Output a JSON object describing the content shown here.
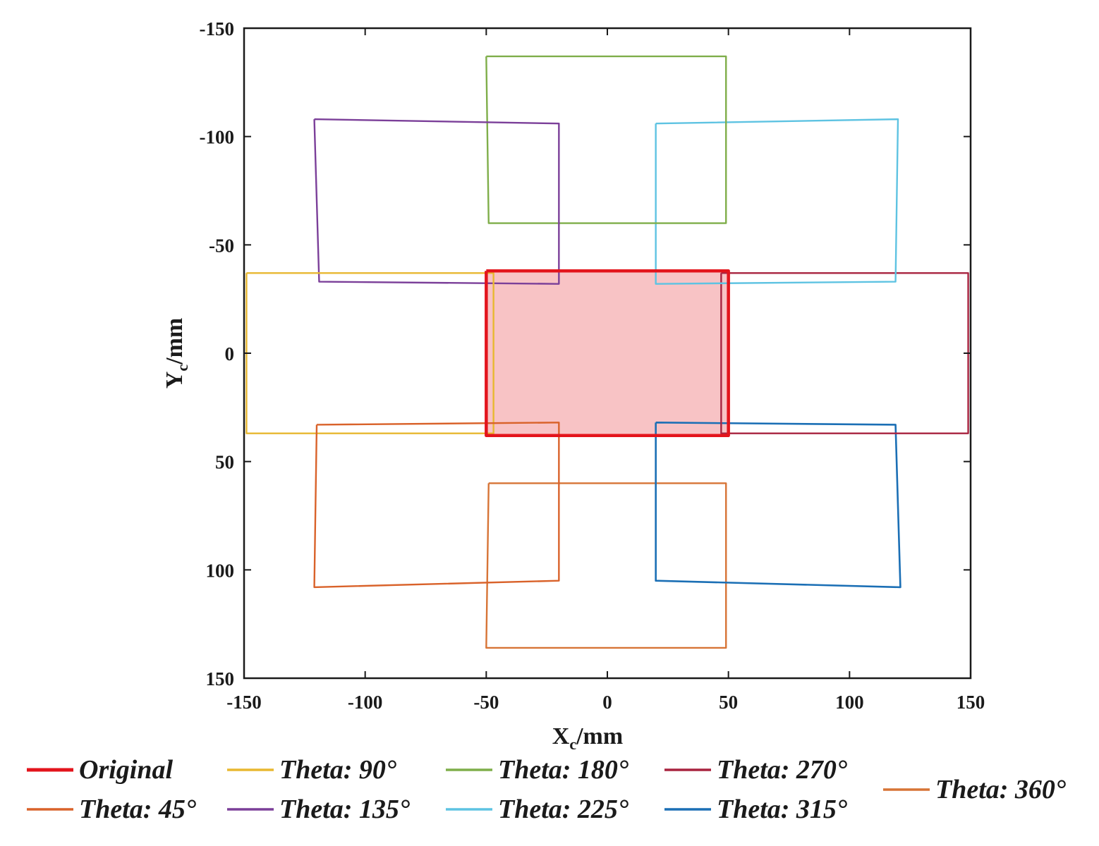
{
  "chart_data": {
    "type": "line",
    "title": "",
    "xlabel": {
      "main": "X",
      "sub": "c",
      "unit": "/mm"
    },
    "ylabel": {
      "main": "Y",
      "sub": "c",
      "unit": "/mm"
    },
    "xlim": [
      -150,
      150
    ],
    "ylim": [
      -150,
      150
    ],
    "y_inverted": true,
    "grid": false,
    "xticks": [
      -150,
      -100,
      -50,
      0,
      50,
      100,
      150
    ],
    "yticks": [
      -150,
      -100,
      -50,
      0,
      50,
      100,
      150
    ],
    "legend_position": "bottom",
    "series": [
      {
        "name": "Original",
        "color": "#e3141c",
        "width": 4.5,
        "fill": "#f8c3c5",
        "points": [
          [
            -50,
            -38
          ],
          [
            50,
            -38
          ],
          [
            50,
            38
          ],
          [
            -50,
            38
          ],
          [
            -50,
            -38
          ]
        ]
      },
      {
        "name": "Theta: 45°",
        "color": "#d9622a",
        "width": 2.4,
        "points": [
          [
            -120,
            33
          ],
          [
            -20,
            32
          ],
          [
            -20,
            105
          ],
          [
            -121,
            108
          ],
          [
            -120,
            33
          ]
        ]
      },
      {
        "name": "Theta: 90°",
        "color": "#e8b830",
        "width": 2.4,
        "points": [
          [
            -149,
            -37
          ],
          [
            -47,
            -37
          ],
          [
            -47,
            37
          ],
          [
            -149,
            37
          ],
          [
            -149,
            -37
          ]
        ]
      },
      {
        "name": "Theta: 135°",
        "color": "#7b3f99",
        "width": 2.4,
        "points": [
          [
            -121,
            -108
          ],
          [
            -20,
            -106
          ],
          [
            -20,
            -32
          ],
          [
            -119,
            -33
          ],
          [
            -121,
            -108
          ]
        ]
      },
      {
        "name": "Theta: 180°",
        "color": "#7fae4a",
        "width": 2.4,
        "points": [
          [
            -50,
            -137
          ],
          [
            49,
            -137
          ],
          [
            49,
            -60
          ],
          [
            -49,
            -60
          ],
          [
            -50,
            -137
          ]
        ]
      },
      {
        "name": "Theta: 225°",
        "color": "#5ec3e2",
        "width": 2.4,
        "points": [
          [
            20,
            -106
          ],
          [
            120,
            -108
          ],
          [
            119,
            -33
          ],
          [
            20,
            -32
          ],
          [
            20,
            -106
          ]
        ]
      },
      {
        "name": "Theta: 270°",
        "color": "#a8233f",
        "width": 2.4,
        "points": [
          [
            47,
            -37
          ],
          [
            149,
            -37
          ],
          [
            149,
            37
          ],
          [
            47,
            37
          ],
          [
            47,
            -37
          ]
        ]
      },
      {
        "name": "Theta: 315°",
        "color": "#1b6fb5",
        "width": 2.6,
        "points": [
          [
            20,
            32
          ],
          [
            119,
            33
          ],
          [
            121,
            108
          ],
          [
            20,
            105
          ],
          [
            20,
            32
          ]
        ]
      },
      {
        "name": "Theta: 360°",
        "color": "#d77436",
        "width": 2.4,
        "points": [
          [
            -49,
            60
          ],
          [
            49,
            60
          ],
          [
            49,
            136
          ],
          [
            -50,
            136
          ],
          [
            -49,
            60
          ]
        ]
      }
    ]
  },
  "legend_rows": [
    [
      "Original",
      "Theta: 90°",
      "Theta: 180°",
      "Theta: 270°"
    ],
    [
      "Theta: 45°",
      "Theta: 135°",
      "Theta: 225°",
      "Theta: 315°"
    ],
    [
      "Theta: 360°"
    ]
  ]
}
